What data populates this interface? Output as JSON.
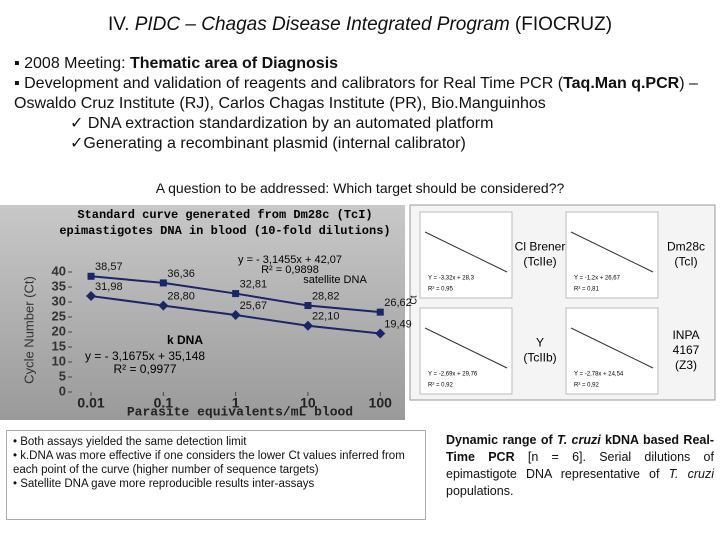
{
  "title": [
    "IV. ",
    "PIDC – Chagas Disease Integrated Program",
    " (FIOCRUZ)"
  ],
  "bullets": [
    [
      "▪ 2008 Meeting: ",
      "Thematic area of Diagnosis"
    ],
    [
      "▪ Development and validation of reagents and calibrators for Real Time PCR (",
      "Taq.Man q.PCR",
      ") – Oswaldo Cruz Institute (RJ), Carlos Chagas Institute (PR), Bio.Manguinhos"
    ],
    [
      "✓ DNA extraction standardization by an automated platform"
    ],
    [
      "✓Generating a recombinant plasmid (internal calibrator)"
    ]
  ],
  "question": "A question to be addressed: Which target should be considered??",
  "chart_data": {
    "type": "line",
    "title": [
      "Standard curve generated from Dm28c (TcI)",
      "epimastigotes DNA in blood (10-fold dilutions)"
    ],
    "xlabel": "Parasite equivalents/mL blood",
    "ylabel": "Cycle Number (Ct)",
    "log_x": true,
    "x": [
      0.01,
      0.1,
      1,
      10,
      100
    ],
    "xlim": [
      0.006,
      160
    ],
    "xticks": [
      0.01,
      0.1,
      1,
      10,
      100
    ],
    "ylim": [
      0,
      45
    ],
    "yticks": [
      0,
      5,
      10,
      15,
      20,
      25,
      30,
      35,
      40
    ],
    "series": [
      {
        "name": "satellite DNA",
        "color": "#1c2566",
        "marker": "square",
        "values": [
          38.57,
          36.36,
          32.81,
          28.82,
          26.62
        ],
        "value_labels": [
          "38,57",
          "36,36",
          "32,81",
          "28,82",
          "26,62"
        ],
        "equation": [
          "y = - 3,1455x + 42,07",
          "R² = 0,9898"
        ]
      },
      {
        "name": "k DNA",
        "color": "#1c2566",
        "marker": "diamond",
        "values": [
          31.98,
          28.8,
          25.67,
          22.1,
          19.49
        ],
        "value_labels": [
          "31,98",
          "28,80",
          "25,67",
          "22,10",
          "19,49"
        ],
        "equation": [
          "y = - 3,1675x + 35,148",
          "R² = 0,9977"
        ]
      }
    ]
  },
  "panel_axis_label": "Ct",
  "panels": [
    {
      "label": [
        "Cl Brener",
        "(TcIIe)"
      ],
      "equation": [
        "Y = -3,32x + 28,3",
        "R² = 0,95"
      ]
    },
    {
      "label": [
        "Dm28c",
        "(TcI)"
      ],
      "equation": [
        "Y = -1,2x + 26,67",
        "R² = 0,81"
      ]
    },
    {
      "label": [
        "Y",
        "(TcIIb)"
      ],
      "equation": [
        "Y = -2,69x + 29,76",
        "R² = 0,92"
      ]
    },
    {
      "label": [
        "INPA",
        "4167",
        "(Z3)"
      ],
      "equation": [
        "Y = -2,78x + 24,54",
        "R² = 0,92"
      ]
    }
  ],
  "findings": [
    "• Both assays yielded the same detection limit",
    "• k.DNA was more effective if one considers the lower Ct values inferred from each point of the curve (higher number of sequence targets)",
    "• Satellite DNA gave more reproducible results inter-assays"
  ],
  "caption": [
    "Dynamic range of ",
    "T. cruzi",
    " kDNA based Real-Time PCR",
    " [n = 6]. Serial dilutions of epimastigote DNA representative of ",
    "T. cruzi",
    " populations."
  ]
}
